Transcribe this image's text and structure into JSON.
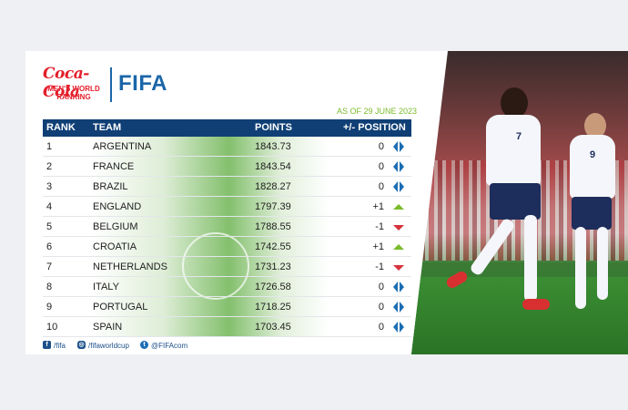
{
  "header": {
    "brand": "Coca-Cola",
    "subtitle_line1": "MEN'S WORLD",
    "subtitle_line2": "RANKING",
    "org": "FIFA",
    "as_of": "AS OF 29 JUNE 2023"
  },
  "table": {
    "columns": {
      "rank": "RANK",
      "team": "TEAM",
      "points": "POINTS",
      "change": "+/- POSITION"
    },
    "rows": [
      {
        "rank": "1",
        "team": "ARGENTINA",
        "points": "1843.73",
        "change": "0",
        "trend": "same"
      },
      {
        "rank": "2",
        "team": "FRANCE",
        "points": "1843.54",
        "change": "0",
        "trend": "same"
      },
      {
        "rank": "3",
        "team": "BRAZIL",
        "points": "1828.27",
        "change": "0",
        "trend": "same"
      },
      {
        "rank": "4",
        "team": "ENGLAND",
        "points": "1797.39",
        "change": "+1",
        "trend": "up"
      },
      {
        "rank": "5",
        "team": "BELGIUM",
        "points": "1788.55",
        "change": "-1",
        "trend": "down"
      },
      {
        "rank": "6",
        "team": "CROATIA",
        "points": "1742.55",
        "change": "+1",
        "trend": "up"
      },
      {
        "rank": "7",
        "team": "NETHERLANDS",
        "points": "1731.23",
        "change": "-1",
        "trend": "down"
      },
      {
        "rank": "8",
        "team": "ITALY",
        "points": "1726.58",
        "change": "0",
        "trend": "same"
      },
      {
        "rank": "9",
        "team": "PORTUGAL",
        "points": "1718.25",
        "change": "0",
        "trend": "same"
      },
      {
        "rank": "10",
        "team": "SPAIN",
        "points": "1703.45",
        "change": "0",
        "trend": "same"
      }
    ]
  },
  "footer": {
    "facebook": "/fifa",
    "instagram": "/fifaworldcup",
    "twitter": "@FIFAcom"
  },
  "photo": {
    "player_numbers": [
      "7",
      "9"
    ]
  },
  "colors": {
    "header_bg": "#0f3f75",
    "accent_green": "#7cbb2a",
    "down_red": "#d6333a",
    "fifa_blue": "#1b66a8",
    "coke_red": "#e41e2b"
  }
}
